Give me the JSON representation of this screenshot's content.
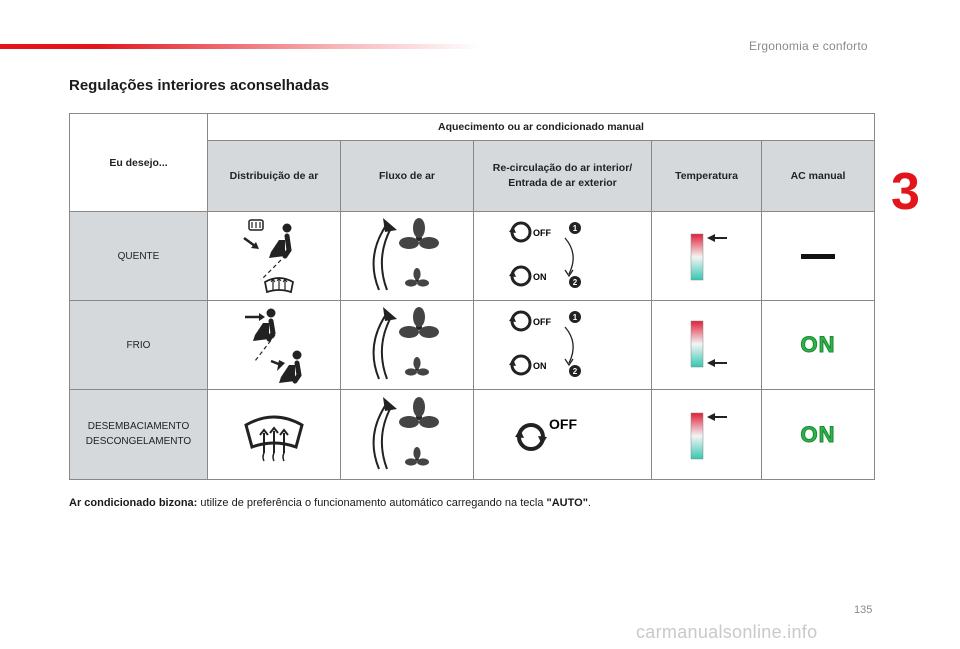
{
  "header": {
    "section": "Ergonomia e conforto",
    "chapter_number": "3"
  },
  "title": "Regulações interiores aconselhadas",
  "table": {
    "corner_label": "Eu desejo...",
    "group_header": "Aquecimento ou ar condicionado manual",
    "columns": [
      "Distribuição de ar",
      "Fluxo de ar",
      "Re-circulação do ar interior/ Entrada de ar exterior",
      "Temperatura",
      "AC manual"
    ],
    "rows": [
      {
        "label": "QUENTE",
        "recirc_top": "OFF",
        "recirc_bottom": "ON",
        "step1": "1",
        "step2": "2",
        "ac": "—",
        "temperature_level": "high"
      },
      {
        "label": "FRIO",
        "recirc_top": "OFF",
        "recirc_bottom": "ON",
        "step1": "1",
        "step2": "2",
        "ac": "ON",
        "temperature_level": "low"
      },
      {
        "label_line1": "DESEMBACIAMENTO",
        "label_line2": "DESCONGELAMENTO",
        "recirc_top": "OFF",
        "ac": "ON",
        "temperature_level": "high"
      }
    ]
  },
  "footnote": {
    "bold": "Ar condicionado bizona:",
    "text": " utilize de preferência o funcionamento automático carregando na tecla ",
    "key": "\"AUTO\"",
    "end": "."
  },
  "page_number": "135",
  "watermark": "carmanualsonline.info",
  "colors": {
    "accent": "#e2151c",
    "on_green": "#2db34a",
    "header_grey": "#d5d9dc"
  }
}
